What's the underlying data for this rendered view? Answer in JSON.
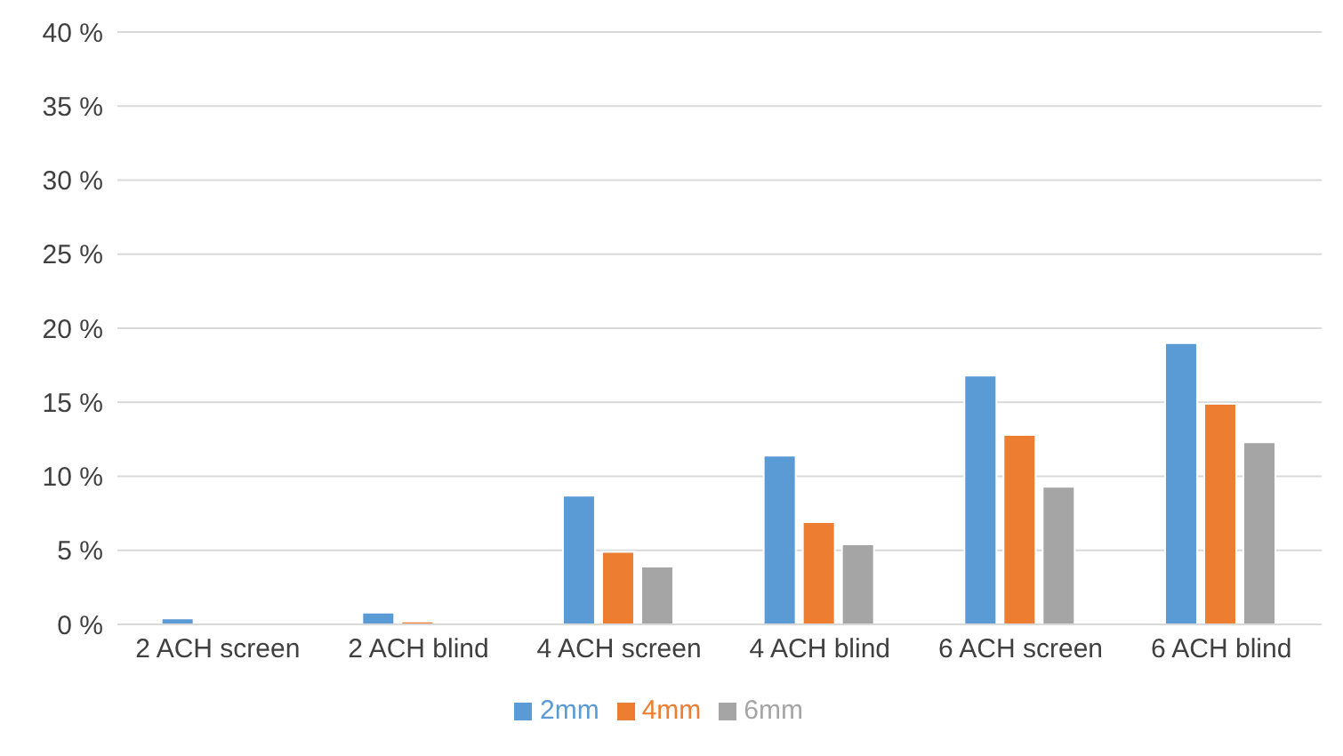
{
  "chart_data": {
    "type": "bar",
    "categories": [
      "2 ACH screen",
      "2 ACH blind",
      "4 ACH screen",
      "4 ACH blind",
      "6 ACH screen",
      "6 ACH blind"
    ],
    "series": [
      {
        "name": "2mm",
        "color": "#5b9bd5",
        "values": [
          0.4,
          0.8,
          8.7,
          11.4,
          16.8,
          19.0
        ]
      },
      {
        "name": "4mm",
        "color": "#ed7d31",
        "values": [
          0,
          0.2,
          4.9,
          6.9,
          12.8,
          14.9
        ]
      },
      {
        "name": "6mm",
        "color": "#a5a5a5",
        "values": [
          0,
          0,
          3.9,
          5.4,
          9.3,
          12.3
        ]
      }
    ],
    "ylim": [
      0,
      40
    ],
    "yticks": [
      {
        "value": 0,
        "label": "0 %"
      },
      {
        "value": 5,
        "label": "5 %"
      },
      {
        "value": 10,
        "label": "10 %"
      },
      {
        "value": 15,
        "label": "15 %"
      },
      {
        "value": 20,
        "label": "20 %"
      },
      {
        "value": 25,
        "label": "25 %"
      },
      {
        "value": 30,
        "label": "30 %"
      },
      {
        "value": 35,
        "label": "35 %"
      },
      {
        "value": 40,
        "label": "40 %"
      }
    ],
    "grid": "y",
    "legend": "bottom"
  }
}
